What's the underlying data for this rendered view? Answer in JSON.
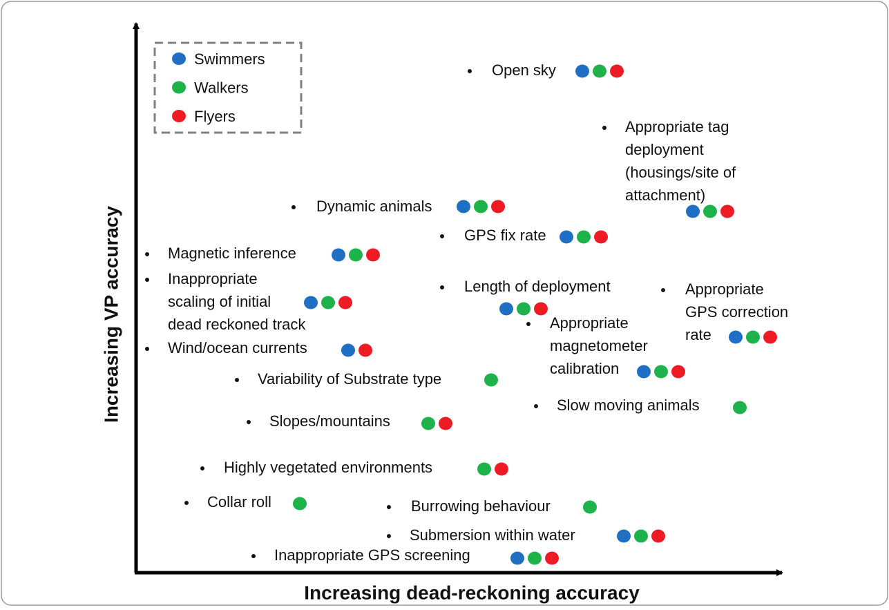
{
  "axes": {
    "x_label": "Increasing dead-reckoning accuracy",
    "y_label": "Increasing VP accuracy"
  },
  "legend": [
    {
      "label": "Swimmers",
      "color": "#1f6fc5"
    },
    {
      "label": "Walkers",
      "color": "#1db34a"
    },
    {
      "label": "Flyers",
      "color": "#ed1c24"
    }
  ],
  "factors": [
    {
      "lines": [
        "Open sky"
      ],
      "taxa": [
        "Swimmers",
        "Walkers",
        "Flyers"
      ]
    },
    {
      "lines": [
        "Appropriate tag",
        "deployment",
        "(housings/site of",
        "attachment)"
      ],
      "taxa": [
        "Swimmers",
        "Walkers",
        "Flyers"
      ]
    },
    {
      "lines": [
        "Dynamic animals"
      ],
      "taxa": [
        "Swimmers",
        "Walkers",
        "Flyers"
      ]
    },
    {
      "lines": [
        "GPS fix rate"
      ],
      "taxa": [
        "Swimmers",
        "Walkers",
        "Flyers"
      ]
    },
    {
      "lines": [
        "Magnetic inference"
      ],
      "taxa": [
        "Swimmers",
        "Walkers",
        "Flyers"
      ]
    },
    {
      "lines": [
        "Inappropriate",
        "scaling of initial",
        "dead reckoned track"
      ],
      "taxa": [
        "Swimmers",
        "Walkers",
        "Flyers"
      ]
    },
    {
      "lines": [
        "Wind/ocean currents"
      ],
      "taxa": [
        "Swimmers",
        "Flyers"
      ]
    },
    {
      "lines": [
        "Length of deployment"
      ],
      "taxa": [
        "Swimmers",
        "Walkers",
        "Flyers"
      ]
    },
    {
      "lines": [
        "Appropriate",
        "GPS correction",
        "rate"
      ],
      "taxa": [
        "Swimmers",
        "Walkers",
        "Flyers"
      ]
    },
    {
      "lines": [
        "Appropriate",
        "magnetometer",
        "calibration"
      ],
      "taxa": [
        "Swimmers",
        "Walkers",
        "Flyers"
      ]
    },
    {
      "lines": [
        "Variability of Substrate type"
      ],
      "taxa": [
        "Walkers"
      ]
    },
    {
      "lines": [
        "Slow moving animals"
      ],
      "taxa": [
        "Walkers"
      ]
    },
    {
      "lines": [
        "Slopes/mountains"
      ],
      "taxa": [
        "Walkers",
        "Flyers"
      ]
    },
    {
      "lines": [
        "Highly vegetated environments"
      ],
      "taxa": [
        "Walkers",
        "Flyers"
      ]
    },
    {
      "lines": [
        "Collar roll"
      ],
      "taxa": [
        "Walkers"
      ]
    },
    {
      "lines": [
        "Burrowing behaviour"
      ],
      "taxa": [
        "Walkers"
      ]
    },
    {
      "lines": [
        "Submersion within water"
      ],
      "taxa": [
        "Swimmers",
        "Walkers",
        "Flyers"
      ]
    },
    {
      "lines": [
        "Inappropriate GPS screening"
      ],
      "taxa": [
        "Swimmers",
        "Walkers",
        "Flyers"
      ]
    }
  ]
}
